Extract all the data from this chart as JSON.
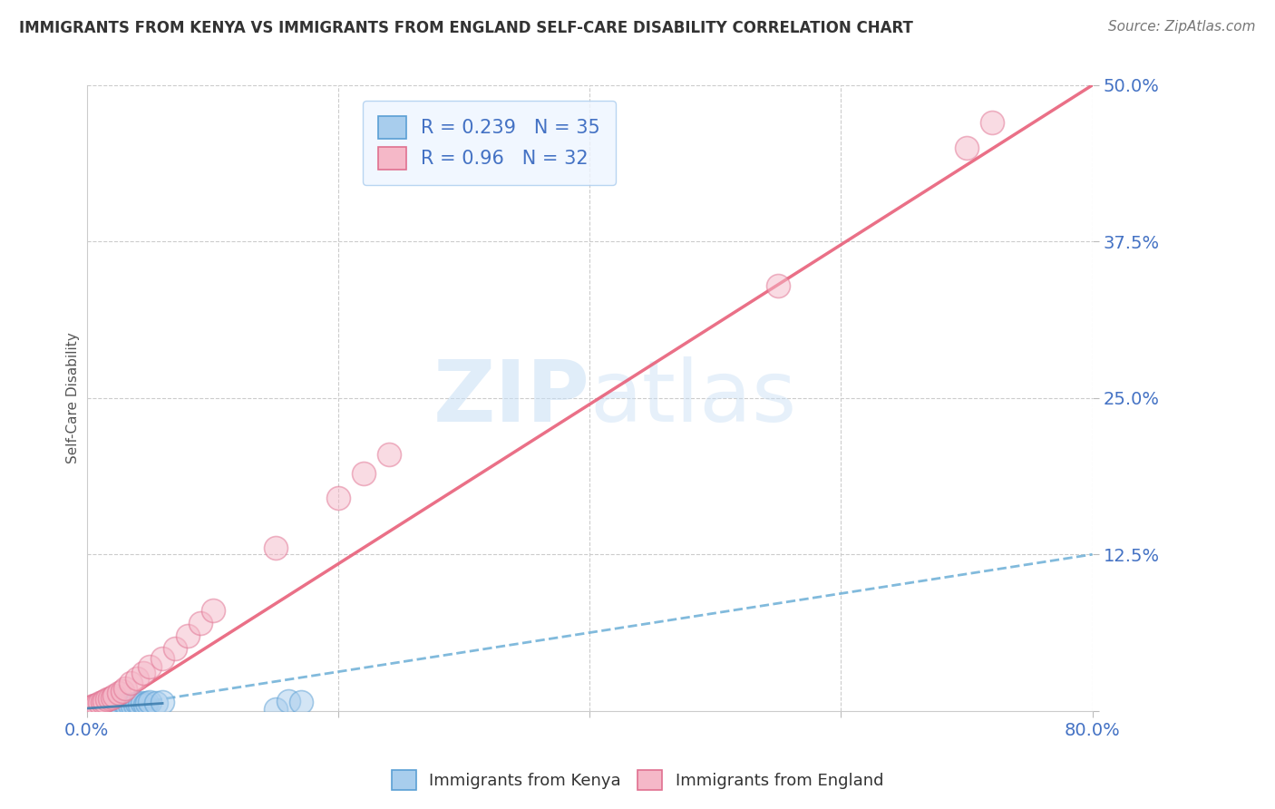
{
  "title": "IMMIGRANTS FROM KENYA VS IMMIGRANTS FROM ENGLAND SELF-CARE DISABILITY CORRELATION CHART",
  "source": "Source: ZipAtlas.com",
  "ylabel": "Self-Care Disability",
  "xlim": [
    0,
    0.8
  ],
  "ylim": [
    0,
    0.5
  ],
  "xticks": [
    0.0,
    0.2,
    0.4,
    0.6,
    0.8
  ],
  "xticklabels": [
    "0.0%",
    "",
    "",
    "",
    "80.0%"
  ],
  "yticks": [
    0.0,
    0.125,
    0.25,
    0.375,
    0.5
  ],
  "yticklabels": [
    "",
    "12.5%",
    "25.0%",
    "37.5%",
    "50.0%"
  ],
  "kenya_R": 0.239,
  "kenya_N": 35,
  "england_R": 0.96,
  "england_N": 32,
  "kenya_color": "#A8CDED",
  "england_color": "#F5B8C8",
  "kenya_edge_color": "#5A9FD4",
  "england_edge_color": "#E07090",
  "trendline_kenya_color": "#6BAED6",
  "trendline_england_color": "#E8607A",
  "watermark_color": "#C8DFF5",
  "kenya_scatter_x": [
    0.001,
    0.002,
    0.003,
    0.004,
    0.005,
    0.006,
    0.007,
    0.008,
    0.009,
    0.01,
    0.011,
    0.013,
    0.015,
    0.017,
    0.019,
    0.021,
    0.023,
    0.025,
    0.027,
    0.03,
    0.032,
    0.034,
    0.036,
    0.038,
    0.04,
    0.042,
    0.044,
    0.046,
    0.048,
    0.05,
    0.055,
    0.06,
    0.15,
    0.16,
    0.17
  ],
  "kenya_scatter_y": [
    0.001,
    0.001,
    0.002,
    0.001,
    0.002,
    0.003,
    0.001,
    0.002,
    0.003,
    0.002,
    0.003,
    0.003,
    0.004,
    0.002,
    0.003,
    0.004,
    0.003,
    0.004,
    0.003,
    0.005,
    0.004,
    0.005,
    0.004,
    0.005,
    0.006,
    0.005,
    0.006,
    0.005,
    0.006,
    0.007,
    0.006,
    0.007,
    0.001,
    0.008,
    0.007
  ],
  "england_scatter_x": [
    0.001,
    0.002,
    0.003,
    0.005,
    0.006,
    0.008,
    0.01,
    0.012,
    0.014,
    0.016,
    0.018,
    0.02,
    0.022,
    0.025,
    0.028,
    0.03,
    0.035,
    0.04,
    0.045,
    0.05,
    0.06,
    0.07,
    0.08,
    0.09,
    0.1,
    0.15,
    0.2,
    0.22,
    0.24,
    0.55,
    0.7,
    0.72
  ],
  "england_scatter_y": [
    0.002,
    0.003,
    0.003,
    0.004,
    0.004,
    0.005,
    0.006,
    0.007,
    0.008,
    0.009,
    0.01,
    0.011,
    0.012,
    0.014,
    0.016,
    0.018,
    0.022,
    0.026,
    0.03,
    0.035,
    0.042,
    0.05,
    0.06,
    0.07,
    0.08,
    0.13,
    0.17,
    0.19,
    0.205,
    0.34,
    0.45,
    0.47
  ],
  "england_outlier_x": [
    0.24
  ],
  "england_outlier_y": [
    0.205
  ],
  "kenya_trend_x0": 0.0,
  "kenya_trend_y0": 0.0,
  "kenya_trend_x1": 0.8,
  "kenya_trend_y1": 0.125,
  "england_trend_x0": 0.0,
  "england_trend_y0": -0.01,
  "england_trend_x1": 0.8,
  "england_trend_y1": 0.5
}
